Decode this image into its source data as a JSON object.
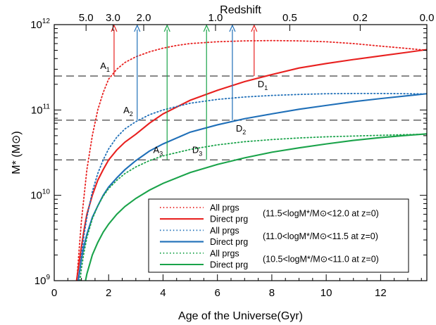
{
  "chart_data": {
    "type": "line",
    "xlabel": "Age of the Universe(Gyr)",
    "ylabel": "M* (M⊙)",
    "top_axis_title": "Redshift",
    "xlim": [
      0,
      13.7
    ],
    "ylim": [
      1000000000.0,
      1000000000000.0
    ],
    "yscale": "log",
    "x_ticks": [
      0,
      2,
      4,
      6,
      8,
      10,
      12
    ],
    "y_ticks": [
      {
        "value": 1000000000.0,
        "base": "10",
        "exp": "9"
      },
      {
        "value": 10000000000.0,
        "base": "10",
        "exp": "10"
      },
      {
        "value": 100000000000.0,
        "base": "10",
        "exp": "11"
      },
      {
        "value": 1000000000000.0,
        "base": "10",
        "exp": "12"
      }
    ],
    "top_ticks": [
      {
        "label": "5.0",
        "age": 1.17
      },
      {
        "label": "3.0",
        "age": 2.16
      },
      {
        "label": "2.0",
        "age": 3.29
      },
      {
        "label": "1.0",
        "age": 5.93
      },
      {
        "label": "0.5",
        "age": 8.66
      },
      {
        "label": "0.2",
        "age": 11.25
      },
      {
        "label": "0.0",
        "age": 13.7
      }
    ],
    "series": [
      {
        "name": "All prgs",
        "group": "(11.5<logM*/M⊙<12.0 at z=0)",
        "color": "#e8201f",
        "dash": "dotted",
        "x": [
          0.83,
          0.9,
          1.0,
          1.1,
          1.2,
          1.4,
          1.6,
          1.8,
          2.0,
          2.3,
          2.6,
          3.0,
          3.5,
          4.0,
          4.5,
          5.0,
          6.0,
          7.0,
          8.0,
          9.0,
          10.0,
          11.0,
          12.0,
          13.0,
          13.7
        ],
        "y": [
          1000000000.0,
          2000000000.0,
          5000000000.0,
          10000000000.0,
          20000000000.0,
          50000000000.0,
          100000000000.0,
          160000000000.0,
          230000000000.0,
          300000000000.0,
          360000000000.0,
          420000000000.0,
          480000000000.0,
          530000000000.0,
          570000000000.0,
          600000000000.0,
          630000000000.0,
          645000000000.0,
          650000000000.0,
          645000000000.0,
          630000000000.0,
          600000000000.0,
          560000000000.0,
          525000000000.0,
          500000000000.0
        ]
      },
      {
        "name": "Direct prg",
        "group": "(11.5<logM*/M⊙<12.0 at z=0)",
        "color": "#e8201f",
        "dash": "solid",
        "x": [
          0.82,
          0.9,
          1.0,
          1.1,
          1.2,
          1.4,
          1.6,
          1.8,
          2.0,
          2.3,
          2.6,
          3.0,
          3.5,
          4.0,
          5.0,
          6.0,
          7.0,
          8.0,
          9.0,
          10.0,
          11.0,
          12.0,
          13.0,
          13.7
        ],
        "y": [
          1000000000.0,
          1500000000.0,
          2500000000.0,
          4000000000.0,
          6000000000.0,
          10000000000.0,
          15000000000.0,
          20000000000.0,
          26000000000.0,
          34000000000.0,
          42000000000.0,
          52000000000.0,
          70000000000.0,
          90000000000.0,
          130000000000.0,
          170000000000.0,
          215000000000.0,
          260000000000.0,
          310000000000.0,
          350000000000.0,
          390000000000.0,
          430000000000.0,
          475000000000.0,
          510000000000.0
        ]
      },
      {
        "name": "All prgs",
        "group": "(11.0<logM*/M⊙<11.5 at z=0)",
        "color": "#1f6fb8",
        "dash": "dotted",
        "x": [
          0.9,
          1.0,
          1.1,
          1.2,
          1.4,
          1.6,
          1.8,
          2.0,
          2.3,
          2.6,
          3.0,
          3.5,
          4.0,
          5.0,
          6.0,
          7.0,
          8.0,
          9.0,
          10.0,
          11.0,
          12.0,
          13.0,
          13.7
        ],
        "y": [
          1000000000.0,
          2000000000.0,
          3500000000.0,
          5500000000.0,
          11000000000.0,
          18000000000.0,
          26000000000.0,
          35000000000.0,
          48000000000.0,
          60000000000.0,
          73000000000.0,
          88000000000.0,
          100000000000.0,
          120000000000.0,
          133000000000.0,
          142000000000.0,
          148000000000.0,
          152000000000.0,
          155000000000.0,
          156000000000.0,
          156000000000.0,
          155000000000.0,
          154000000000.0
        ]
      },
      {
        "name": "Direct prg",
        "group": "(11.0<logM*/M⊙<11.5 at z=0)",
        "color": "#1f6fb8",
        "dash": "solid",
        "x": [
          0.88,
          1.0,
          1.1,
          1.2,
          1.4,
          1.6,
          1.8,
          2.0,
          2.3,
          2.6,
          3.0,
          3.5,
          4.0,
          5.0,
          6.0,
          7.0,
          8.0,
          9.0,
          10.0,
          11.0,
          12.0,
          13.0,
          13.7
        ],
        "y": [
          1000000000.0,
          1800000000.0,
          2600000000.0,
          3500000000.0,
          5500000000.0,
          7500000000.0,
          10000000000.0,
          12500000000.0,
          16000000000.0,
          20000000000.0,
          25500000000.0,
          33000000000.0,
          40000000000.0,
          55000000000.0,
          67000000000.0,
          79000000000.0,
          90000000000.0,
          102000000000.0,
          113000000000.0,
          125000000000.0,
          136000000000.0,
          147000000000.0,
          155000000000.0
        ]
      },
      {
        "name": "All prgs",
        "group": "(10.5<logM*/M⊙<11.0 at z=0)",
        "color": "#1aa34a",
        "dash": "dotted",
        "x": [
          0.95,
          1.0,
          1.1,
          1.2,
          1.4,
          1.6,
          1.8,
          2.0,
          2.3,
          2.6,
          3.0,
          3.5,
          4.0,
          5.0,
          6.0,
          7.0,
          8.0,
          9.0,
          10.0,
          11.0,
          12.0,
          13.0,
          13.7
        ],
        "y": [
          1000000000.0,
          1400000000.0,
          2200000000.0,
          3200000000.0,
          5300000000.0,
          7500000000.0,
          9800000000.0,
          12000000000.0,
          15000000000.0,
          18000000000.0,
          21500000000.0,
          25500000000.0,
          29000000000.0,
          34500000000.0,
          39000000000.0,
          42500000000.0,
          45000000000.0,
          47000000000.0,
          48500000000.0,
          49500000000.0,
          50500000000.0,
          51500000000.0,
          52000000000.0
        ]
      },
      {
        "name": "Direct prg",
        "group": "(10.5<logM*/M⊙<11.0 at z=0)",
        "color": "#1aa34a",
        "dash": "solid",
        "x": [
          1.15,
          1.2,
          1.4,
          1.6,
          1.8,
          2.0,
          2.3,
          2.6,
          3.0,
          3.5,
          4.0,
          5.0,
          6.0,
          7.0,
          8.0,
          9.0,
          10.0,
          11.0,
          12.0,
          13.0,
          13.7
        ],
        "y": [
          1000000000.0,
          1200000000.0,
          2000000000.0,
          2800000000.0,
          3700000000.0,
          4600000000.0,
          6000000000.0,
          7400000000.0,
          9200000000.0,
          11500000000.0,
          13800000000.0,
          18500000000.0,
          23000000000.0,
          27500000000.0,
          32000000000.0,
          36000000000.0,
          40000000000.0,
          44000000000.0,
          47500000000.0,
          50500000000.0,
          52500000000.0
        ]
      }
    ],
    "hlines": [
      {
        "y": 250000000000.0
      },
      {
        "y": 76000000000.0
      },
      {
        "y": 26000000000.0
      }
    ],
    "vertical_arrows": [
      {
        "x": 2.2,
        "y_from": 250000000000.0,
        "color": "#e8201f"
      },
      {
        "x": 7.35,
        "y_from": 250000000000.0,
        "color": "#e8201f"
      },
      {
        "x": 3.05,
        "y_from": 76000000000.0,
        "color": "#1f6fb8"
      },
      {
        "x": 6.55,
        "y_from": 76000000000.0,
        "color": "#1f6fb8"
      },
      {
        "x": 4.15,
        "y_from": 26000000000.0,
        "color": "#1aa34a"
      },
      {
        "x": 5.6,
        "y_from": 26000000000.0,
        "color": "#1aa34a"
      }
    ],
    "annotations": [
      {
        "letter": "A",
        "sub": "1",
        "x": 2.2,
        "y": 250000000000.0,
        "side": "left"
      },
      {
        "letter": "D",
        "sub": "1",
        "x": 7.35,
        "y": 250000000000.0,
        "side": "right"
      },
      {
        "letter": "A",
        "sub": "2",
        "x": 3.05,
        "y": 76000000000.0,
        "side": "left"
      },
      {
        "letter": "D",
        "sub": "2",
        "x": 6.55,
        "y": 76000000000.0,
        "side": "right"
      },
      {
        "letter": "A",
        "sub": "3",
        "x": 4.15,
        "y": 26000000000.0,
        "side": "left"
      },
      {
        "letter": "D",
        "sub": "3",
        "x": 5.6,
        "y": 26000000000.0,
        "side": "left"
      }
    ],
    "legend_placement": "bottom-right",
    "legend_groups": [
      "(11.5<logM*/M⊙<12.0 at z=0)",
      "(11.0<logM*/M⊙<11.5 at z=0)",
      "(10.5<logM*/M⊙<11.0 at z=0)"
    ]
  }
}
